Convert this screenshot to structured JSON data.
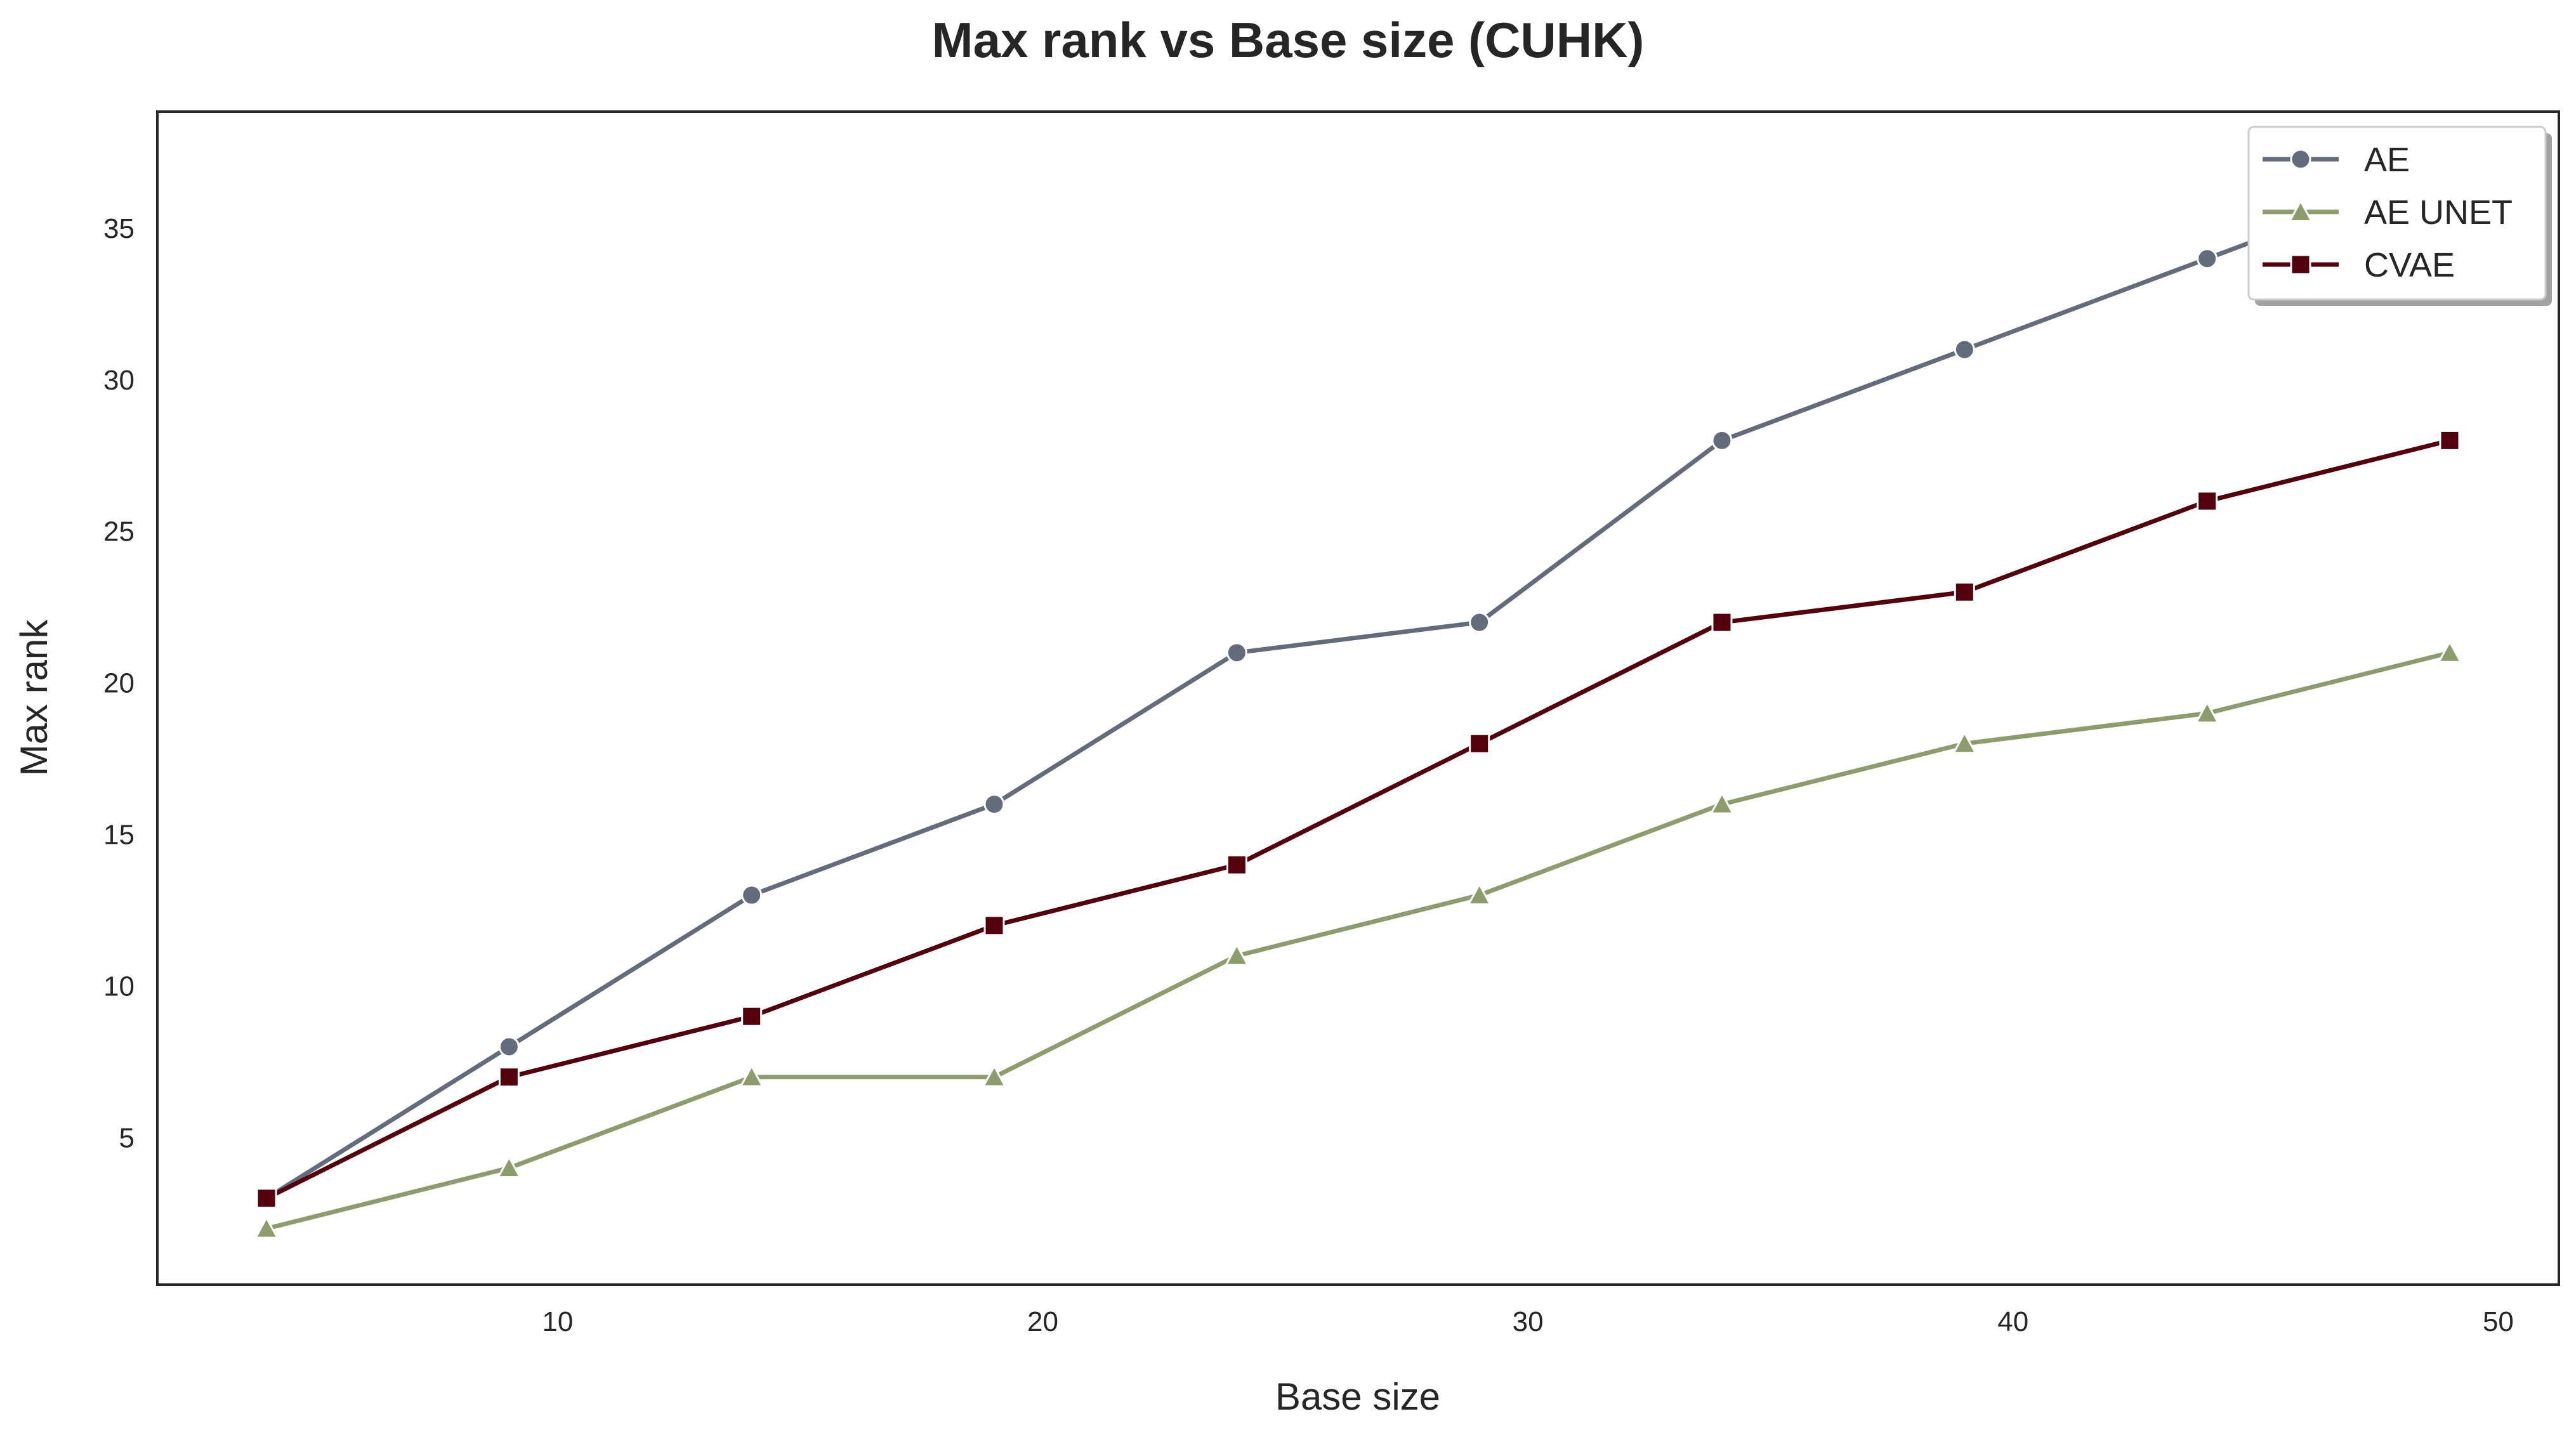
{
  "chart_data": {
    "type": "line",
    "title": "Max rank vs Base size (CUHK)",
    "xlabel": "Base size",
    "ylabel": "Max rank",
    "x": [
      4,
      9,
      14,
      19,
      24,
      29,
      34,
      39,
      44,
      49
    ],
    "xlim": [
      1.75,
      51.25
    ],
    "ylim": [
      0.15,
      38.85
    ],
    "xticks": [
      10,
      20,
      30,
      40,
      50
    ],
    "yticks": [
      5,
      10,
      15,
      20,
      25,
      30,
      35
    ],
    "grid": false,
    "legend_position": "top-right",
    "series": [
      {
        "name": "AE",
        "values": [
          3,
          8,
          13,
          16,
          21,
          22,
          28,
          31,
          34,
          37
        ],
        "color": "#646c7c",
        "marker": "circle"
      },
      {
        "name": "AE UNET",
        "values": [
          2,
          4,
          7,
          7,
          11,
          13,
          16,
          18,
          19,
          21
        ],
        "color": "#8c9c6c",
        "marker": "triangle"
      },
      {
        "name": "CVAE",
        "values": [
          3,
          7,
          9,
          12,
          14,
          18,
          22,
          23,
          26,
          28
        ],
        "color": "#54000c",
        "marker": "square"
      }
    ]
  }
}
